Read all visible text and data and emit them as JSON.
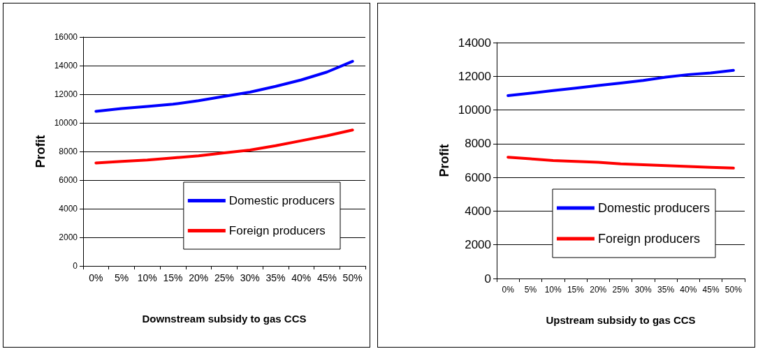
{
  "chart_data": [
    {
      "type": "line",
      "xlabel": "Downstream subsidy to gas CCS",
      "ylabel": "Profit",
      "categories": [
        "0%",
        "5%",
        "10%",
        "15%",
        "20%",
        "25%",
        "30%",
        "35%",
        "40%",
        "45%",
        "50%"
      ],
      "series": [
        {
          "name": "Domestic producers",
          "color": "#0000ff",
          "values": [
            10800,
            11000,
            11150,
            11300,
            11550,
            11850,
            12150,
            12550,
            13000,
            13550,
            14300
          ]
        },
        {
          "name": "Foreign producers",
          "color": "#ff0000",
          "values": [
            7200,
            7300,
            7400,
            7550,
            7700,
            7900,
            8100,
            8400,
            8750,
            9100,
            9500
          ]
        }
      ],
      "ylim": [
        0,
        16000
      ],
      "yticks": [
        0,
        2000,
        4000,
        6000,
        8000,
        10000,
        12000,
        14000,
        16000
      ],
      "grid": "y",
      "legend": "bottom right",
      "marker": "none",
      "line_style": "solid"
    },
    {
      "type": "line",
      "xlabel": "Upstream subsidy to gas CCS",
      "ylabel": "Profit",
      "categories": [
        "0%",
        "5%",
        "10%",
        "15%",
        "20%",
        "25%",
        "30%",
        "35%",
        "40%",
        "45%",
        "50%"
      ],
      "series": [
        {
          "name": "Domestic producers",
          "color": "#0000ff",
          "values": [
            10850,
            11000,
            11150,
            11300,
            11450,
            11600,
            11750,
            11950,
            12100,
            12200,
            12350
          ]
        },
        {
          "name": "Foreign producers",
          "color": "#ff0000",
          "values": [
            7200,
            7100,
            7000,
            6950,
            6900,
            6800,
            6750,
            6700,
            6650,
            6600,
            6550
          ]
        }
      ],
      "ylim": [
        0,
        14000
      ],
      "yticks": [
        0,
        2000,
        4000,
        6000,
        8000,
        10000,
        12000,
        14000
      ],
      "grid": "y",
      "legend": "bottom right",
      "marker": "none",
      "line_style": "solid"
    }
  ]
}
